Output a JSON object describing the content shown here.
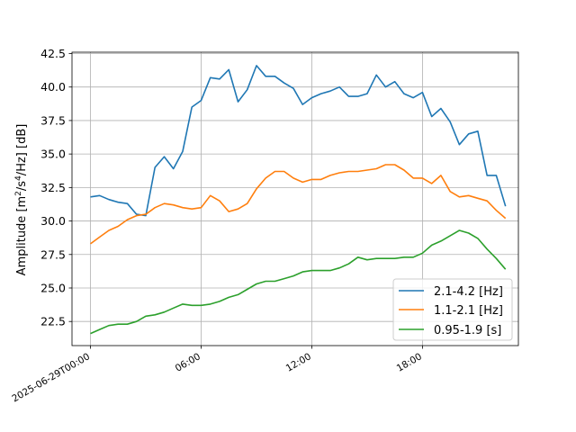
{
  "chart_data": {
    "type": "line",
    "ylabel_parts": {
      "prefix": "Amplitude [m",
      "sup1": "2",
      "mid": "/s",
      "sup2": "4",
      "suffix": "/Hz] [dB]"
    },
    "xlabel": "",
    "ylim": [
      20.7,
      42.6
    ],
    "xlim_hours": [
      -1.0,
      23.2
    ],
    "x_tick_hours": [
      0,
      6,
      12,
      18
    ],
    "x_tick_labels": [
      "2025-06-29T00:00",
      "06:00",
      "12:00",
      "18:00"
    ],
    "y_ticks": [
      22.5,
      25.0,
      27.5,
      30.0,
      32.5,
      35.0,
      37.5,
      40.0,
      42.5
    ],
    "y_tick_labels": [
      "22.5",
      "25.0",
      "27.5",
      "30.0",
      "32.5",
      "35.0",
      "37.5",
      "40.0",
      "42.5"
    ],
    "grid": true,
    "legend_position": "lower-right",
    "x_hours": [
      0,
      0.5,
      1,
      1.5,
      2,
      2.5,
      3,
      3.5,
      4,
      4.5,
      5,
      5.5,
      6,
      6.5,
      7,
      7.5,
      8,
      8.5,
      9,
      9.5,
      10,
      10.5,
      11,
      11.5,
      12,
      12.5,
      13,
      13.5,
      14,
      14.5,
      15,
      15.5,
      16,
      16.5,
      17,
      17.5,
      18,
      18.5,
      19,
      19.5,
      20,
      20.5,
      21,
      21.5,
      22,
      22.5
    ],
    "series": [
      {
        "name": "2.1-4.2 [Hz]",
        "color": "#1f77b4",
        "values": [
          31.8,
          31.9,
          31.6,
          31.4,
          31.3,
          30.5,
          30.4,
          34.0,
          34.8,
          33.9,
          35.2,
          38.5,
          39.0,
          40.7,
          40.6,
          41.3,
          38.9,
          39.8,
          41.6,
          40.8,
          40.8,
          40.3,
          39.9,
          38.7,
          39.2,
          39.5,
          39.7,
          40.0,
          39.3,
          39.3,
          39.5,
          40.9,
          40.0,
          40.4,
          39.5,
          39.2,
          39.6,
          37.8,
          38.4,
          37.4,
          35.7,
          36.5,
          36.7,
          33.4,
          33.4,
          31.1
        ]
      },
      {
        "name": "1.1-2.1 [Hz]",
        "color": "#ff7f0e",
        "values": [
          28.3,
          28.8,
          29.3,
          29.6,
          30.1,
          30.4,
          30.5,
          31.0,
          31.3,
          31.2,
          31.0,
          30.9,
          31.0,
          31.9,
          31.5,
          30.7,
          30.9,
          31.3,
          32.4,
          33.2,
          33.7,
          33.7,
          33.2,
          32.9,
          33.1,
          33.1,
          33.4,
          33.6,
          33.7,
          33.7,
          33.8,
          33.9,
          34.2,
          34.2,
          33.8,
          33.2,
          33.2,
          32.8,
          33.4,
          32.2,
          31.8,
          31.9,
          31.7,
          31.5,
          30.8,
          30.2
        ]
      },
      {
        "name": "0.95-1.9 [s]",
        "color": "#2ca02c",
        "values": [
          21.6,
          21.9,
          22.2,
          22.3,
          22.3,
          22.5,
          22.9,
          23.0,
          23.2,
          23.5,
          23.8,
          23.7,
          23.7,
          23.8,
          24.0,
          24.3,
          24.5,
          24.9,
          25.3,
          25.5,
          25.5,
          25.7,
          25.9,
          26.2,
          26.3,
          26.3,
          26.3,
          26.5,
          26.8,
          27.3,
          27.1,
          27.2,
          27.2,
          27.2,
          27.3,
          27.3,
          27.6,
          28.2,
          28.5,
          28.9,
          29.3,
          29.1,
          28.7,
          27.9,
          27.2,
          26.4
        ]
      }
    ]
  }
}
